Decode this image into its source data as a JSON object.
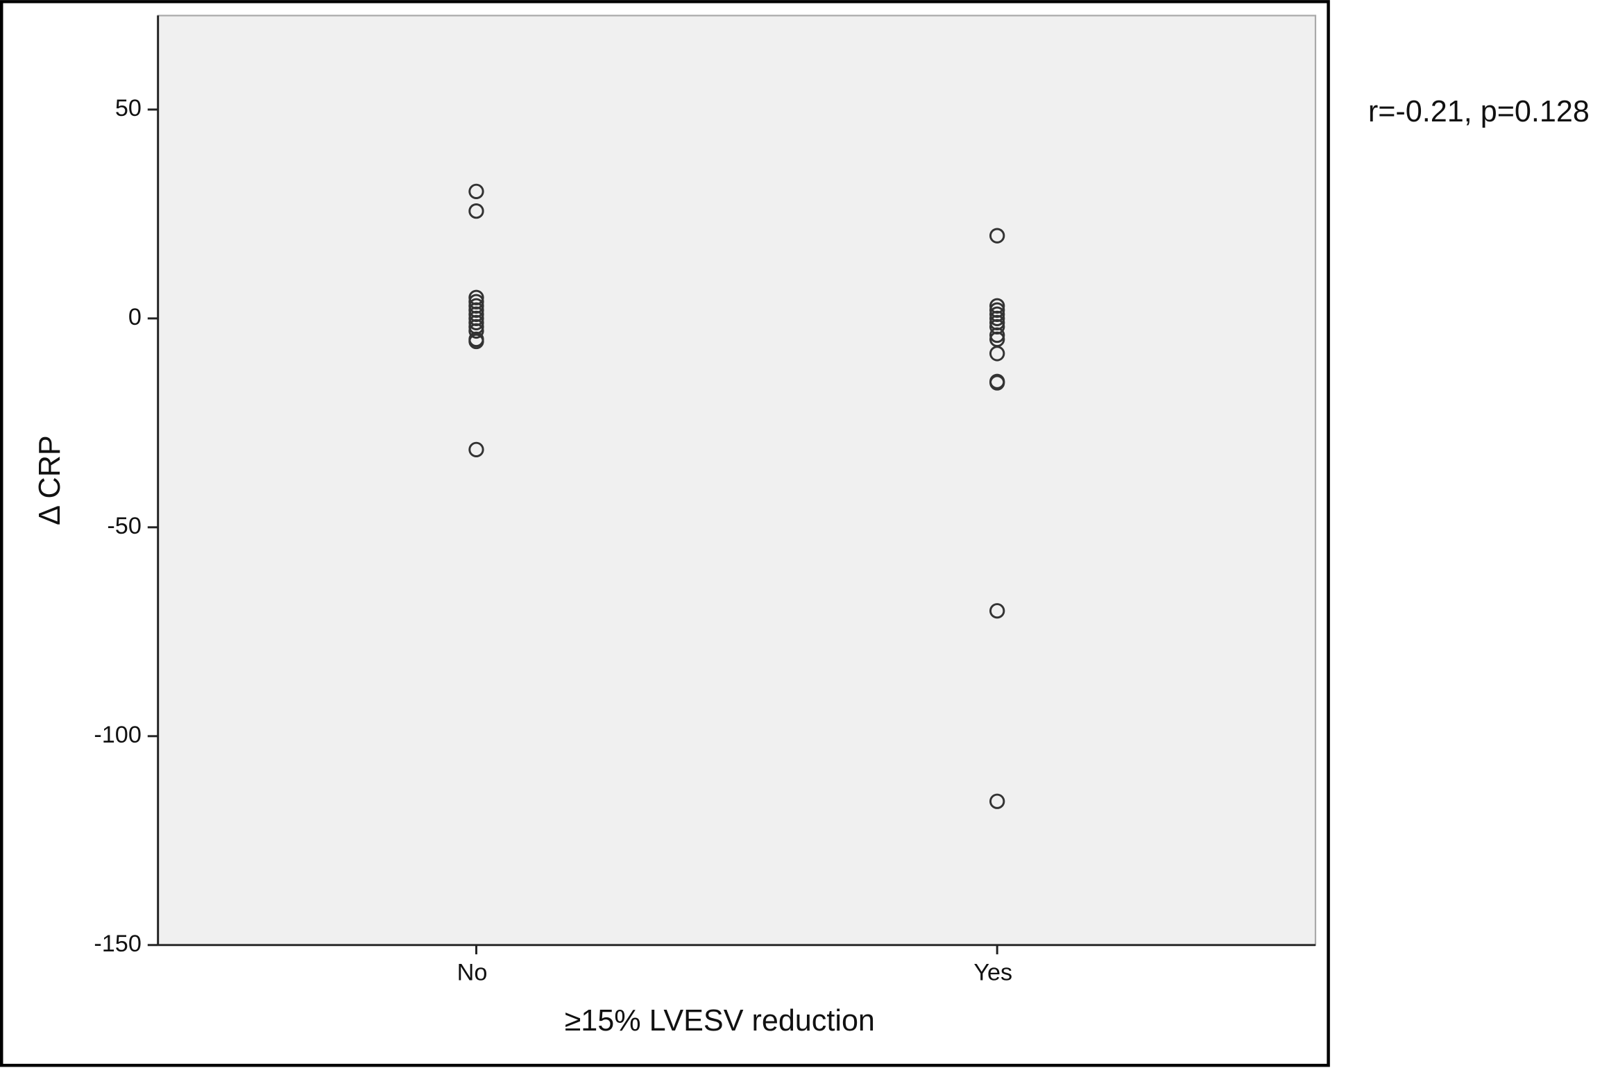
{
  "chart_data": {
    "type": "scatter",
    "x_label": "≥15% LVESV reduction",
    "y_label": "Δ CRP",
    "annotation": "r=-0.21, p=0.128",
    "categories": [
      "No",
      "Yes"
    ],
    "values": [
      [
        30.4,
        25.7,
        5,
        4,
        3,
        2,
        1,
        0,
        -1,
        -2,
        -3,
        -5,
        -5.5,
        -31.4
      ],
      [
        19.8,
        3,
        2,
        1,
        0,
        -1,
        -2,
        -4,
        -5,
        -8.4,
        -15.1,
        -15.4,
        -70,
        -115.6
      ]
    ],
    "color": "#333333",
    "ylim": [
      -150,
      72.5
    ],
    "yticks": [
      -150,
      -100,
      -50,
      0,
      50
    ],
    "grid": false
  }
}
